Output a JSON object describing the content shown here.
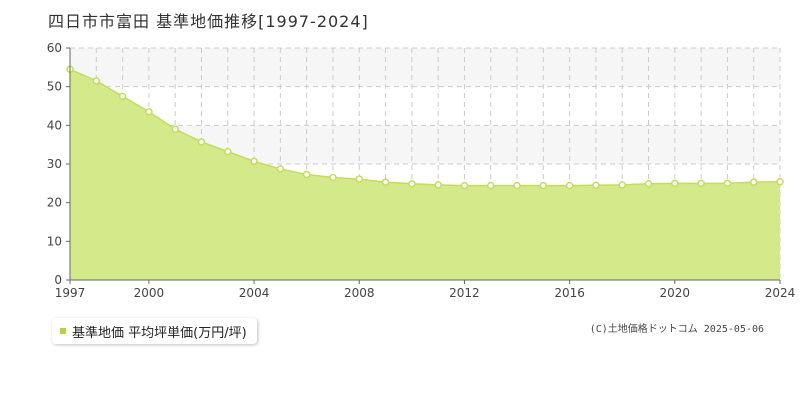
{
  "title": "四日市市富田 基準地価推移[1997-2024]",
  "legend": {
    "label": "基準地価 平均坪単価(万円/坪)"
  },
  "copyright": "(C)土地価格ドットコム 2025-05-06",
  "colors": {
    "fill": "#d4e98a",
    "line": "#c2de58",
    "marker_fill": "#ffffff",
    "marker_stroke": "#c2de58",
    "grid": "#cccccc",
    "band": "#f6f6f6",
    "axis": "#666666",
    "legend_swatch": "#b4d63c"
  },
  "chart_data": {
    "type": "area",
    "title": "四日市市富田 基準地価推移[1997-2024]",
    "xlabel": "",
    "ylabel": "",
    "x": [
      1997,
      1998,
      1999,
      2000,
      2001,
      2002,
      2003,
      2004,
      2005,
      2006,
      2007,
      2008,
      2009,
      2010,
      2011,
      2012,
      2013,
      2014,
      2015,
      2016,
      2017,
      2018,
      2019,
      2020,
      2021,
      2022,
      2023,
      2024
    ],
    "series": [
      {
        "name": "基準地価 平均坪単価(万円/坪)",
        "values": [
          54.5,
          51.5,
          47.5,
          43.5,
          39.0,
          35.7,
          33.2,
          30.7,
          28.7,
          27.3,
          26.5,
          26.1,
          25.3,
          24.9,
          24.6,
          24.4,
          24.4,
          24.4,
          24.4,
          24.4,
          24.5,
          24.6,
          24.9,
          25.0,
          25.0,
          25.0,
          25.3,
          25.4
        ]
      }
    ],
    "xlim": [
      1997,
      2024
    ],
    "ylim": [
      0,
      60
    ],
    "yticks": [
      0,
      10,
      20,
      30,
      40,
      50,
      60
    ],
    "xtick_labels": [
      1997,
      2000,
      2004,
      2008,
      2012,
      2016,
      2020,
      2024
    ],
    "grid": true,
    "legend_position": "bottom-left"
  }
}
